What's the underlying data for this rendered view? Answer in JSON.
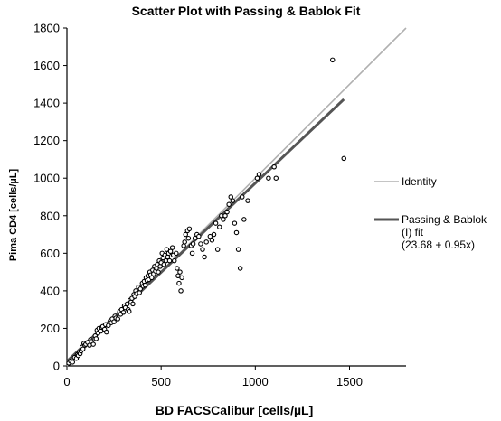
{
  "chart_data": {
    "type": "scatter",
    "title": "Scatter Plot with Passing & Bablok Fit",
    "xlabel": "BD FACSCalibur  [cells/µL]",
    "ylabel": "Pima CD4  [cells/µL]",
    "xlim": [
      0,
      1800
    ],
    "ylim": [
      0,
      1800
    ],
    "xticks": [
      "0",
      "500",
      "1000",
      "1500"
    ],
    "yticks": [
      "0",
      "200",
      "400",
      "600",
      "800",
      "1000",
      "1200",
      "1400",
      "1600",
      "1800"
    ],
    "grid": false,
    "legend_position": "right",
    "series": [
      {
        "name": "Identity",
        "kind": "line",
        "color": "#b0b0b0",
        "x": [
          0,
          1800
        ],
        "y": [
          0,
          1800
        ]
      },
      {
        "name": "Passing & Bablok (I) fit (23.68 + 0.95x)",
        "kind": "line",
        "color": "#555555",
        "intercept": 23.68,
        "slope": 0.95,
        "x_range": [
          0,
          1470
        ]
      }
    ],
    "legend": [
      {
        "label": "Identity",
        "color": "#b0b0b0"
      },
      {
        "label": "Passing & Bablok\n(I) fit\n(23.68 + 0.95x)",
        "color": "#555555"
      }
    ],
    "points": [
      [
        10,
        15
      ],
      [
        20,
        25
      ],
      [
        30,
        20
      ],
      [
        40,
        45
      ],
      [
        50,
        40
      ],
      [
        55,
        60
      ],
      [
        60,
        55
      ],
      [
        65,
        70
      ],
      [
        70,
        65
      ],
      [
        75,
        80
      ],
      [
        80,
        100
      ],
      [
        85,
        90
      ],
      [
        90,
        120
      ],
      [
        95,
        110
      ],
      [
        100,
        115
      ],
      [
        110,
        125
      ],
      [
        120,
        110
      ],
      [
        125,
        140
      ],
      [
        130,
        130
      ],
      [
        140,
        115
      ],
      [
        150,
        160
      ],
      [
        155,
        145
      ],
      [
        160,
        190
      ],
      [
        165,
        175
      ],
      [
        170,
        200
      ],
      [
        180,
        185
      ],
      [
        185,
        205
      ],
      [
        190,
        210
      ],
      [
        200,
        195
      ],
      [
        205,
        220
      ],
      [
        210,
        180
      ],
      [
        220,
        215
      ],
      [
        230,
        240
      ],
      [
        235,
        230
      ],
      [
        240,
        250
      ],
      [
        250,
        235
      ],
      [
        255,
        265
      ],
      [
        260,
        255
      ],
      [
        270,
        250
      ],
      [
        280,
        290
      ],
      [
        285,
        275
      ],
      [
        290,
        300
      ],
      [
        300,
        285
      ],
      [
        305,
        320
      ],
      [
        310,
        310
      ],
      [
        320,
        330
      ],
      [
        325,
        300
      ],
      [
        330,
        290
      ],
      [
        335,
        350
      ],
      [
        340,
        340
      ],
      [
        345,
        360
      ],
      [
        350,
        330
      ],
      [
        355,
        380
      ],
      [
        360,
        370
      ],
      [
        365,
        400
      ],
      [
        370,
        385
      ],
      [
        380,
        420
      ],
      [
        385,
        390
      ],
      [
        390,
        410
      ],
      [
        400,
        440
      ],
      [
        405,
        425
      ],
      [
        410,
        450
      ],
      [
        415,
        430
      ],
      [
        420,
        470
      ],
      [
        425,
        455
      ],
      [
        430,
        480
      ],
      [
        435,
        460
      ],
      [
        440,
        500
      ],
      [
        445,
        485
      ],
      [
        450,
        470
      ],
      [
        455,
        510
      ],
      [
        460,
        490
      ],
      [
        465,
        530
      ],
      [
        470,
        505
      ],
      [
        475,
        520
      ],
      [
        480,
        540
      ],
      [
        485,
        500
      ],
      [
        490,
        560
      ],
      [
        495,
        530
      ],
      [
        500,
        550
      ],
      [
        505,
        600
      ],
      [
        510,
        575
      ],
      [
        515,
        540
      ],
      [
        520,
        590
      ],
      [
        525,
        560
      ],
      [
        530,
        620
      ],
      [
        535,
        580
      ],
      [
        540,
        600
      ],
      [
        545,
        560
      ],
      [
        550,
        610
      ],
      [
        560,
        630
      ],
      [
        565,
        590
      ],
      [
        570,
        560
      ],
      [
        580,
        600
      ],
      [
        585,
        520
      ],
      [
        590,
        480
      ],
      [
        595,
        440
      ],
      [
        600,
        500
      ],
      [
        605,
        400
      ],
      [
        610,
        470
      ],
      [
        620,
        640
      ],
      [
        625,
        660
      ],
      [
        630,
        700
      ],
      [
        640,
        720
      ],
      [
        645,
        680
      ],
      [
        650,
        730
      ],
      [
        660,
        640
      ],
      [
        665,
        600
      ],
      [
        670,
        650
      ],
      [
        680,
        680
      ],
      [
        690,
        700
      ],
      [
        700,
        690
      ],
      [
        710,
        650
      ],
      [
        720,
        620
      ],
      [
        730,
        580
      ],
      [
        740,
        660
      ],
      [
        760,
        690
      ],
      [
        770,
        670
      ],
      [
        780,
        700
      ],
      [
        790,
        760
      ],
      [
        800,
        620
      ],
      [
        810,
        740
      ],
      [
        820,
        800
      ],
      [
        830,
        780
      ],
      [
        840,
        800
      ],
      [
        850,
        820
      ],
      [
        860,
        860
      ],
      [
        870,
        900
      ],
      [
        880,
        880
      ],
      [
        890,
        760
      ],
      [
        900,
        710
      ],
      [
        910,
        620
      ],
      [
        920,
        520
      ],
      [
        930,
        900
      ],
      [
        940,
        780
      ],
      [
        960,
        880
      ],
      [
        1010,
        1000
      ],
      [
        1020,
        1020
      ],
      [
        1070,
        1000
      ],
      [
        1100,
        1060
      ],
      [
        1110,
        1000
      ],
      [
        1410,
        1630
      ],
      [
        1470,
        1105
      ]
    ]
  }
}
